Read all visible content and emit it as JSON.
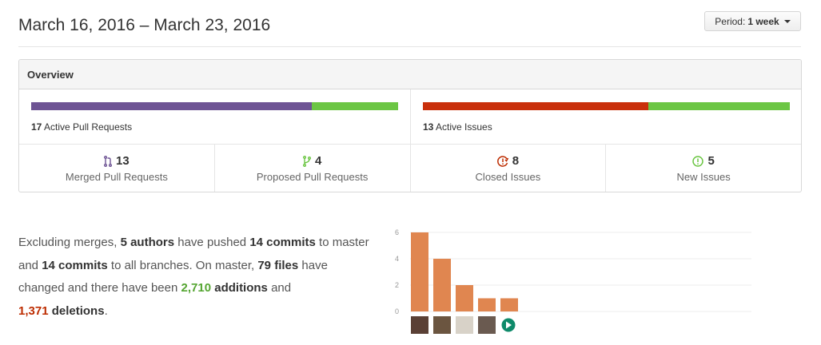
{
  "header": {
    "title": "March 16, 2016 – March 23, 2016",
    "period_label": "Period:",
    "period_value": "1 week"
  },
  "overview": {
    "title": "Overview",
    "pull_requests": {
      "active_count": "17",
      "active_label": "Active Pull Requests",
      "merged_fraction": 0.765,
      "colors": {
        "merged": "#6e5494",
        "proposed": "#6cc644"
      }
    },
    "issues": {
      "active_count": "13",
      "active_label": "Active Issues",
      "closed_fraction": 0.615,
      "colors": {
        "closed": "#c9300b",
        "new": "#6cc644"
      }
    },
    "stats": [
      {
        "icon": "git-merge-icon",
        "count": "13",
        "label": "Merged Pull Requests",
        "color": "#6e5494"
      },
      {
        "icon": "git-pull-request-icon",
        "count": "4",
        "label": "Proposed Pull Requests",
        "color": "#6cc644"
      },
      {
        "icon": "issue-closed-icon",
        "count": "8",
        "label": "Closed Issues",
        "color": "#bd2c00"
      },
      {
        "icon": "issue-opened-icon",
        "count": "5",
        "label": "New Issues",
        "color": "#6cc644"
      }
    ]
  },
  "summary": {
    "t1": "Excluding merges, ",
    "authors": "5 authors",
    "t2": " have pushed ",
    "commits_master": "14 commits",
    "t3": " to master and ",
    "commits_all": "14 commits",
    "t4": " to all branches. On master, ",
    "files": "79 files",
    "t5": " have changed and there have been ",
    "additions": "2,710",
    "t6": " additions",
    "t7": " and ",
    "deletions": "1,371",
    "t8": " deletions",
    "t9": "."
  },
  "chart_data": {
    "type": "bar",
    "categories": [
      "author-1",
      "author-2",
      "author-3",
      "author-4",
      "author-5"
    ],
    "values": [
      6,
      4,
      2,
      1,
      1
    ],
    "yticks": [
      "0",
      "2",
      "4",
      "6"
    ],
    "ylim": [
      0,
      6
    ],
    "bar_color": "#e08650",
    "grid": true
  }
}
